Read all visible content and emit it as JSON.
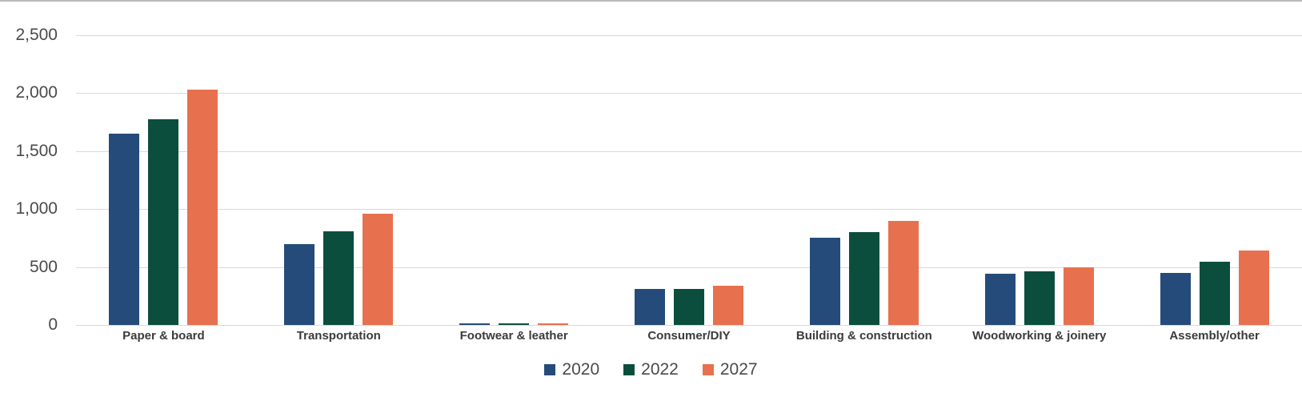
{
  "chart_data": {
    "type": "bar",
    "title": "",
    "xlabel": "",
    "ylabel": "",
    "categories": [
      "Paper & board",
      "Transportation",
      "Footwear & leather",
      "Consumer/DIY",
      "Building & construction",
      "Woodworking & joinery",
      "Assembly/other"
    ],
    "series": [
      {
        "name": "2020",
        "color": "#254B7A",
        "values": [
          1650,
          700,
          10,
          310,
          750,
          440,
          450
        ]
      },
      {
        "name": "2022",
        "color": "#0B4E3D",
        "values": [
          1775,
          810,
          12,
          310,
          800,
          460,
          545
        ]
      },
      {
        "name": "2027",
        "color": "#E7714F",
        "values": [
          2030,
          960,
          15,
          335,
          900,
          500,
          640
        ]
      }
    ],
    "ylim": [
      0,
      2500
    ],
    "yticks": [
      0,
      500,
      1000,
      1500,
      2000,
      2500
    ],
    "ytick_labels": [
      "0",
      "500",
      "1,000",
      "1,500",
      "2,000",
      "2,500"
    ],
    "grid": true,
    "legend_position": "bottom",
    "colors": {
      "gridline": "#d9d9d9",
      "axis_text": "#4a4a4a",
      "category_text": "#3b3b3b"
    }
  }
}
